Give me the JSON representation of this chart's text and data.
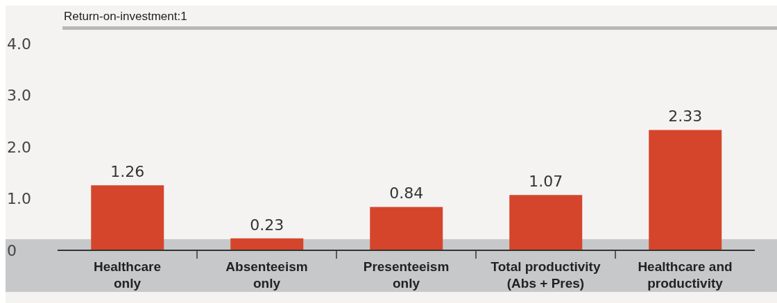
{
  "chart_data": {
    "type": "bar",
    "ylabel": "Return-on-investment:1",
    "categories": [
      "Healthcare only",
      "Absenteeism only",
      "Presenteeism only",
      "Total productivity (Abs + Pres)",
      "Healthcare and productivity"
    ],
    "values": [
      1.26,
      0.23,
      0.84,
      1.07,
      2.33
    ],
    "color": "#d5452b",
    "ylim": [
      0,
      4
    ],
    "yticks": [
      0,
      {
        "value": 1,
        "label": "1.0"
      },
      {
        "value": 2,
        "label": "2.0"
      },
      {
        "value": 3,
        "label": "3.0"
      },
      {
        "value": 4,
        "label": "4.0"
      }
    ],
    "data_labels": true,
    "grid": false,
    "legend": false
  }
}
